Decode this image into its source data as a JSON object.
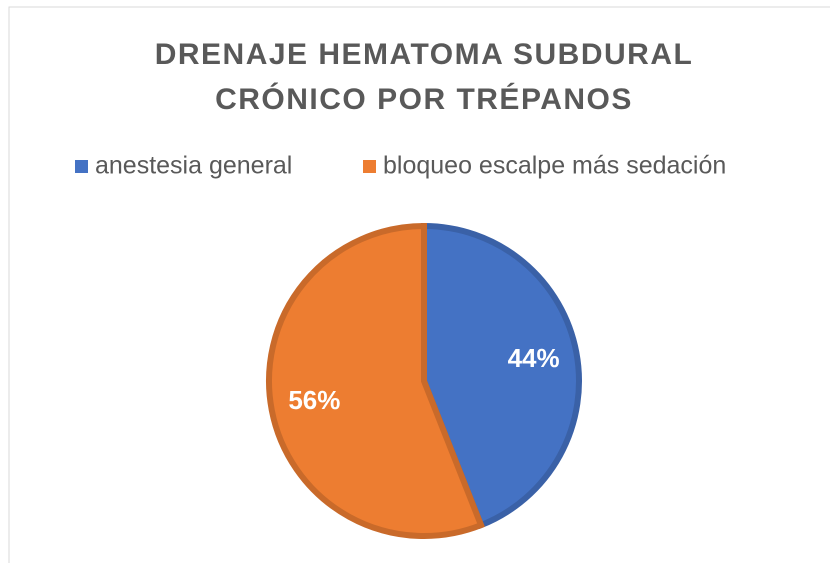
{
  "chart_data": {
    "type": "pie",
    "title": [
      "DRENAJE HEMATOMA SUBDURAL",
      "CRÓNICO POR TRÉPANOS"
    ],
    "categories": [
      "anestesia general",
      "bloqueo escalpe más sedación"
    ],
    "values": [
      44,
      56
    ],
    "value_labels": [
      "44%",
      "56%"
    ],
    "colors": [
      "#4472c4",
      "#ed7d31"
    ],
    "legend": "top"
  }
}
